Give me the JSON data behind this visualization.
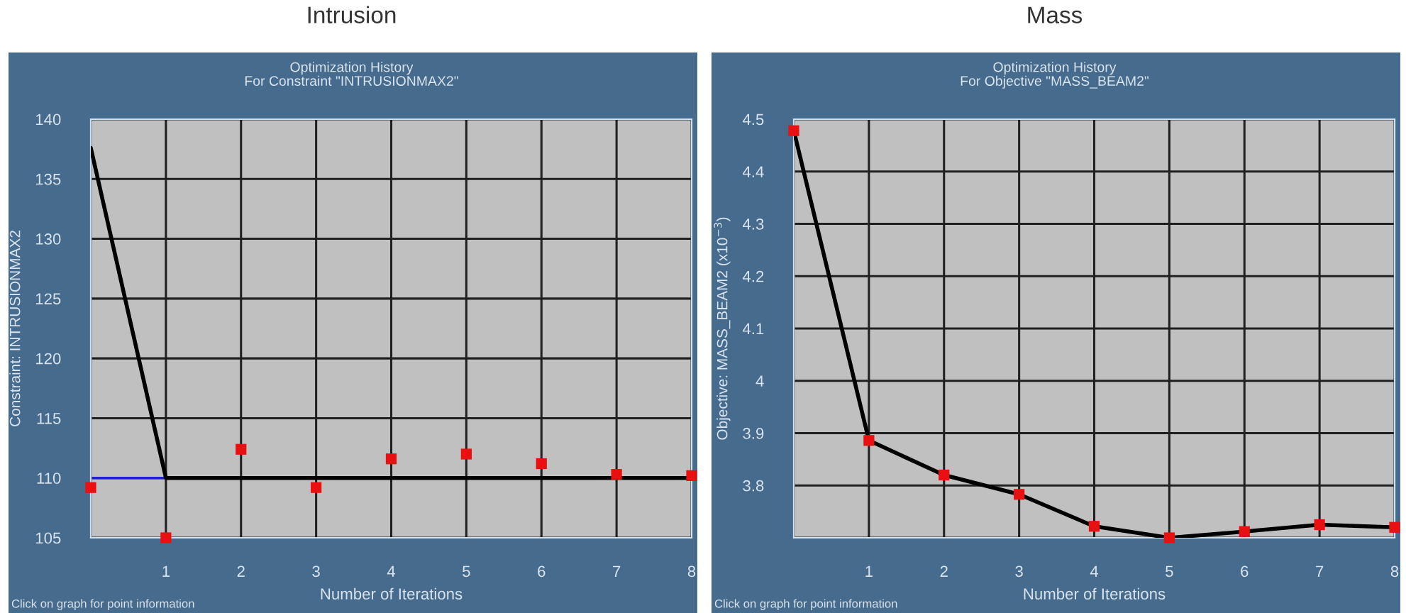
{
  "chart_data": [
    {
      "type": "line",
      "title": "Intrusion",
      "subtitle": "Optimization History\nFor Constraint \"INTRUSIONMAX2\"",
      "xlabel": "Number of Iterations",
      "ylabel": "Constraint: INTRUSIONMAX2",
      "x": [
        0,
        1,
        2,
        3,
        4,
        5,
        6,
        7,
        8
      ],
      "series": [
        {
          "color": "#000000",
          "marker": "none",
          "values": [
            137.6,
            110,
            110,
            110,
            110,
            110,
            110,
            110,
            110
          ]
        },
        {
          "type": "scatter",
          "color": "#e81010",
          "marker": "square",
          "values": [
            109.2,
            105,
            112.4,
            109.2,
            111.6,
            112.0,
            111.2,
            110.3,
            110.2
          ]
        }
      ],
      "ref_lines": [
        {
          "axis": "y",
          "value": 110,
          "color": "#2020d0"
        }
      ],
      "xlim": [
        0,
        8
      ],
      "xticks": [
        {
          "value": 0,
          "label": null
        },
        1,
        2,
        3,
        4,
        5,
        6,
        7,
        8
      ],
      "ylim": [
        105,
        140
      ],
      "yticks": [
        105,
        110,
        115,
        120,
        125,
        130,
        135,
        140
      ],
      "grid": true,
      "annotations": [
        "Click on graph for point information"
      ]
    },
    {
      "type": "line",
      "title": "Mass",
      "subtitle": "Optimization History\nFor Objective \"MASS_BEAM2\"",
      "xlabel": "Number of Iterations",
      "ylabel": "Objective: MASS_BEAM2 (x10$^{−3}$)",
      "x": [
        0,
        1,
        2,
        3,
        4,
        5,
        6,
        7,
        8
      ],
      "series": [
        {
          "color": "#000000",
          "marker": "none",
          "values": [
            4.478,
            3.886,
            3.82,
            3.783,
            3.722,
            3.7,
            3.712,
            3.725,
            3.72
          ]
        },
        {
          "type": "scatter",
          "color": "#e81010",
          "marker": "square",
          "values": [
            4.478,
            3.886,
            3.82,
            3.783,
            3.722,
            3.7,
            3.712,
            3.725,
            3.72
          ]
        }
      ],
      "xlim": [
        0,
        8
      ],
      "xticks": [
        {
          "value": 0,
          "label": null
        },
        1,
        2,
        3,
        4,
        5,
        6,
        7,
        8
      ],
      "ylim": [
        3.7,
        4.5
      ],
      "yticks": [
        {
          "value": 3.7,
          "label": null
        },
        3.8,
        3.9,
        4,
        4.1,
        4.2,
        4.3,
        4.4,
        4.5
      ],
      "grid": true,
      "annotations": [
        "Click on graph for point information"
      ]
    }
  ]
}
